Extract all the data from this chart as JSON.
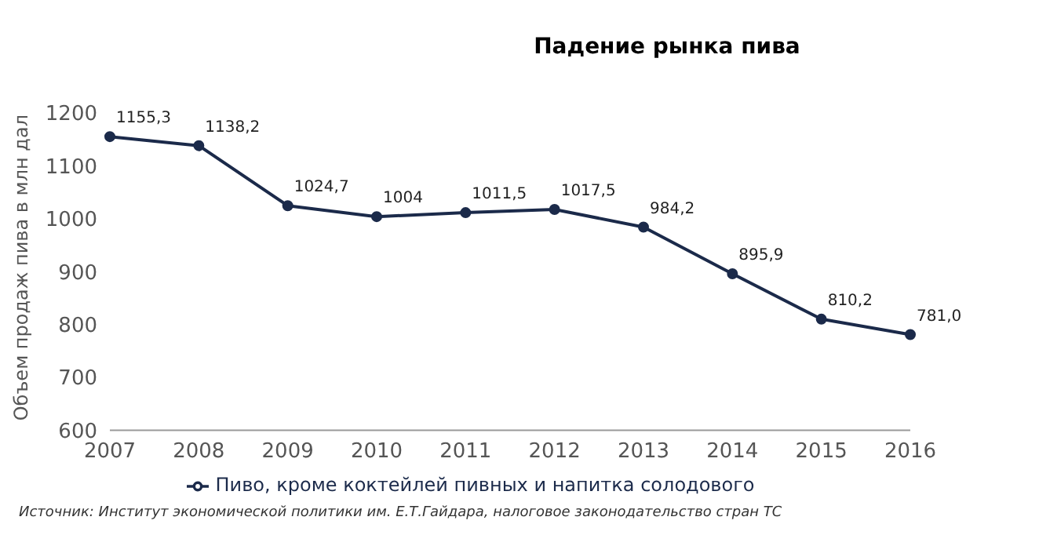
{
  "chart_data": {
    "type": "line",
    "title": "Падение рынка пива",
    "ylabel": "Объем продаж пива в млн дал",
    "categories": [
      "2007",
      "2008",
      "2009",
      "2010",
      "2011",
      "2012",
      "2013",
      "2014",
      "2015",
      "2016"
    ],
    "series": [
      {
        "name": "Пиво, кроме коктейлей пивных и напитка солодового",
        "color": "#1b2a4a",
        "values": [
          1155.3,
          1138.2,
          1024.7,
          1004,
          1011.5,
          1017.5,
          984.2,
          895.9,
          810.2,
          781.0
        ],
        "value_labels": [
          "1155,3",
          "1138,2",
          "1024,7",
          "1004",
          "1011,5",
          "1017,5",
          "984,2",
          "895,9",
          "810,2",
          "781,0"
        ]
      }
    ],
    "ylim": [
      600,
      1200
    ],
    "yticks": [
      600,
      700,
      800,
      900,
      1000,
      1100,
      1200
    ],
    "grid": false,
    "legend": "bottom",
    "marker": "circle",
    "line_style": "solid",
    "annotations": [
      "Источник: Институт экономической политики им. Е.Т.Гайдара, налоговое законодательство стран ТС"
    ]
  }
}
